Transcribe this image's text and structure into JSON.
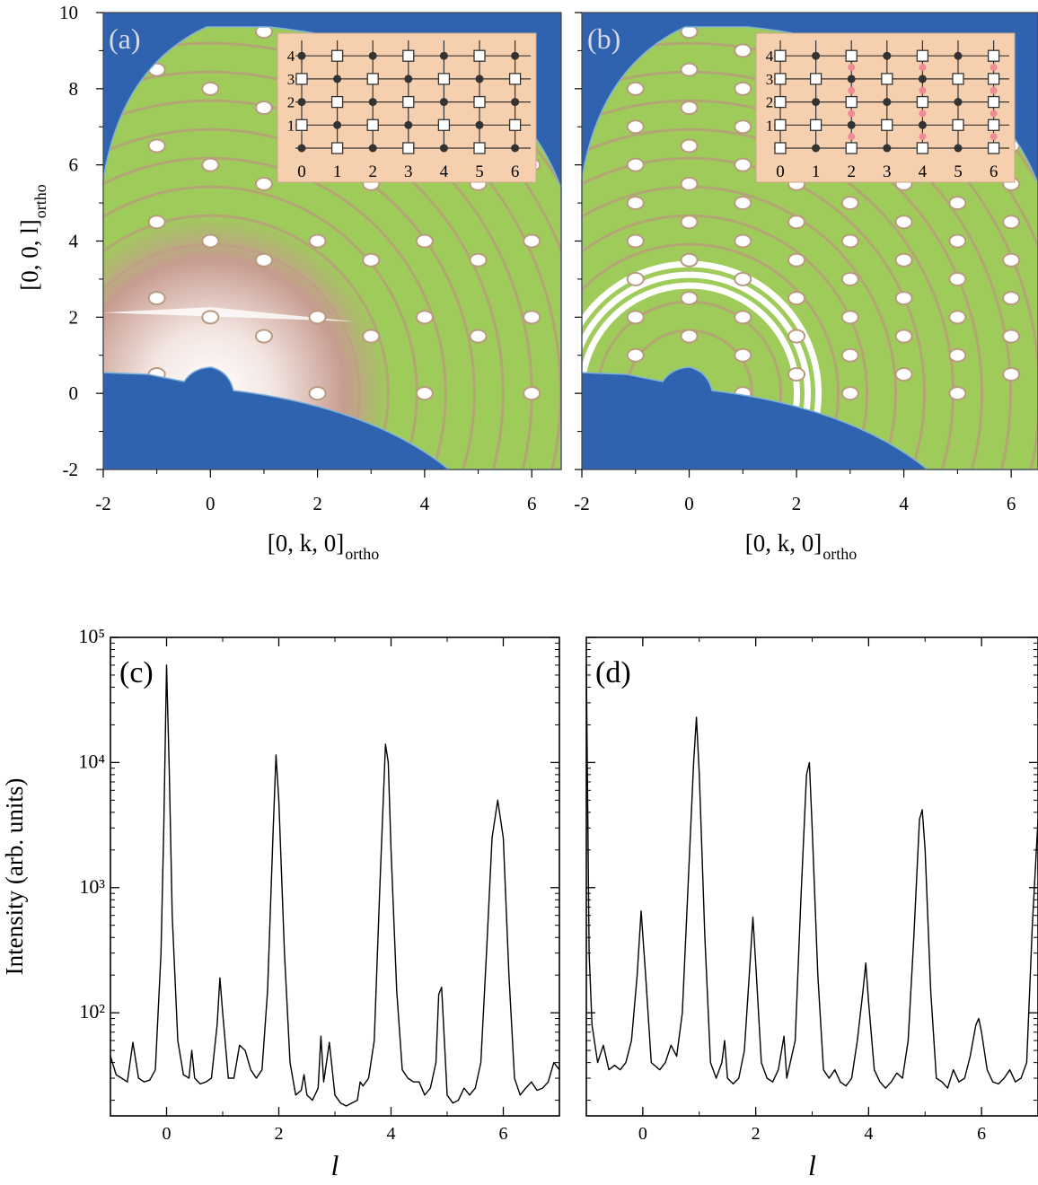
{
  "chart_data": [
    {
      "type": "map",
      "title": "(a)",
      "xlabel": "[0, k, 0]",
      "xlabel_sub": "ortho",
      "ylabel": "[0, 0, l]",
      "ylabel_sub": "ortho",
      "xlim": [
        -2,
        6.55
      ],
      "ylim": [
        -2,
        10
      ],
      "xticks": [
        -2,
        0,
        2,
        4,
        6
      ],
      "yticks": [
        -2,
        0,
        2,
        4,
        6,
        8,
        10
      ],
      "show_ytick_labels": true,
      "inset": {
        "xticks": [
          0,
          1,
          2,
          3,
          4,
          5,
          6
        ],
        "yticks": [
          1,
          2,
          3,
          4
        ]
      }
    },
    {
      "type": "map",
      "title": "(b)",
      "xlabel": "[0, k, 0]",
      "xlabel_sub": "ortho",
      "xlim": [
        -2,
        6.5
      ],
      "ylim": [
        -2,
        10
      ],
      "xticks": [
        -2,
        0,
        2,
        4,
        6
      ],
      "yticks": [
        -2,
        0,
        2,
        4,
        6,
        8,
        10
      ],
      "show_ytick_labels": false,
      "inset": {
        "xticks": [
          0,
          1,
          2,
          3,
          4,
          5,
          6
        ],
        "yticks": [
          1,
          2,
          3,
          4
        ]
      }
    },
    {
      "type": "line",
      "title": "(c)",
      "xlabel": "l",
      "ylabel": "Intensity (arb. units)",
      "log_y": true,
      "xlim": [
        -1,
        7
      ],
      "ylim": [
        15,
        100000
      ],
      "xticks": [
        0,
        2,
        4,
        6
      ],
      "yticks": [
        {
          "value": 100,
          "label": "10²"
        },
        {
          "value": 1000,
          "label": "10³"
        },
        {
          "value": 10000,
          "label": "10⁴"
        },
        {
          "value": 100000,
          "label": "10⁵"
        }
      ],
      "show_ytick_labels": true,
      "color": "#000000",
      "x": [
        -1.0,
        -0.9,
        -0.8,
        -0.7,
        -0.6,
        -0.5,
        -0.4,
        -0.3,
        -0.2,
        -0.1,
        -0.05,
        0.0,
        0.05,
        0.1,
        0.2,
        0.3,
        0.4,
        0.45,
        0.5,
        0.6,
        0.7,
        0.8,
        0.9,
        0.95,
        1.0,
        1.1,
        1.2,
        1.3,
        1.4,
        1.5,
        1.6,
        1.7,
        1.8,
        1.9,
        1.95,
        2.0,
        2.1,
        2.2,
        2.3,
        2.4,
        2.45,
        2.5,
        2.6,
        2.7,
        2.75,
        2.8,
        2.9,
        3.0,
        3.1,
        3.2,
        3.3,
        3.4,
        3.45,
        3.5,
        3.6,
        3.7,
        3.8,
        3.9,
        3.95,
        4.0,
        4.1,
        4.2,
        4.3,
        4.4,
        4.5,
        4.6,
        4.7,
        4.8,
        4.85,
        4.9,
        4.95,
        5.0,
        5.1,
        5.2,
        5.3,
        5.4,
        5.5,
        5.6,
        5.7,
        5.8,
        5.9,
        6.0,
        6.1,
        6.2,
        6.3,
        6.4,
        6.5,
        6.6,
        6.7,
        6.8,
        6.9,
        7.0
      ],
      "values": [
        45,
        32,
        30,
        28,
        58,
        30,
        28,
        29,
        35,
        300,
        3000,
        60000,
        8000,
        600,
        60,
        32,
        30,
        50,
        30,
        27,
        28,
        30,
        80,
        190,
        100,
        30,
        30,
        55,
        50,
        35,
        30,
        35,
        150,
        3000,
        11500,
        5000,
        300,
        40,
        22,
        24,
        32,
        22,
        20,
        25,
        65,
        28,
        58,
        22,
        19,
        18,
        19,
        20,
        28,
        26,
        30,
        60,
        1000,
        14000,
        10000,
        2000,
        150,
        35,
        30,
        28,
        28,
        22,
        25,
        40,
        140,
        160,
        60,
        22,
        19,
        20,
        25,
        22,
        25,
        40,
        300,
        2500,
        5000,
        2500,
        200,
        30,
        22,
        25,
        28,
        24,
        25,
        28,
        40,
        35
      ]
    },
    {
      "type": "line",
      "title": "(d)",
      "xlabel": "l",
      "log_y": true,
      "xlim": [
        -1,
        7
      ],
      "ylim": [
        15,
        100000
      ],
      "xticks": [
        0,
        2,
        4,
        6
      ],
      "yticks": [
        100,
        1000,
        10000,
        100000
      ],
      "show_ytick_labels": false,
      "color": "#000000",
      "x": [
        -1.0,
        -0.95,
        -0.9,
        -0.8,
        -0.7,
        -0.6,
        -0.5,
        -0.4,
        -0.3,
        -0.2,
        -0.1,
        -0.03,
        0.05,
        0.15,
        0.3,
        0.4,
        0.5,
        0.6,
        0.7,
        0.8,
        0.9,
        0.95,
        1.0,
        1.1,
        1.2,
        1.3,
        1.4,
        1.45,
        1.5,
        1.6,
        1.7,
        1.8,
        1.9,
        1.95,
        2.0,
        2.1,
        2.2,
        2.3,
        2.4,
        2.5,
        2.55,
        2.7,
        2.8,
        2.9,
        2.95,
        3.0,
        3.1,
        3.2,
        3.3,
        3.4,
        3.5,
        3.6,
        3.7,
        3.8,
        3.9,
        3.95,
        4.0,
        4.1,
        4.2,
        4.3,
        4.4,
        4.5,
        4.6,
        4.7,
        4.8,
        4.9,
        4.95,
        5.0,
        5.1,
        5.2,
        5.3,
        5.4,
        5.5,
        5.6,
        5.7,
        5.8,
        5.9,
        5.95,
        6.0,
        6.1,
        6.2,
        6.3,
        6.4,
        6.5,
        6.6,
        6.7,
        6.8,
        6.9,
        7.0
      ],
      "values": [
        60000,
        300,
        80,
        40,
        55,
        35,
        38,
        35,
        40,
        60,
        200,
        650,
        200,
        40,
        35,
        40,
        55,
        45,
        100,
        1000,
        10000,
        23000,
        8000,
        400,
        40,
        30,
        40,
        60,
        30,
        27,
        30,
        50,
        250,
        580,
        250,
        40,
        30,
        28,
        35,
        65,
        30,
        60,
        800,
        8000,
        10000,
        3000,
        200,
        35,
        30,
        35,
        28,
        26,
        30,
        60,
        150,
        250,
        120,
        35,
        28,
        25,
        28,
        33,
        30,
        60,
        400,
        3500,
        4200,
        2000,
        150,
        30,
        28,
        25,
        35,
        28,
        30,
        45,
        80,
        90,
        70,
        35,
        28,
        27,
        30,
        35,
        28,
        30,
        40,
        500,
        3500
      ]
    }
  ]
}
